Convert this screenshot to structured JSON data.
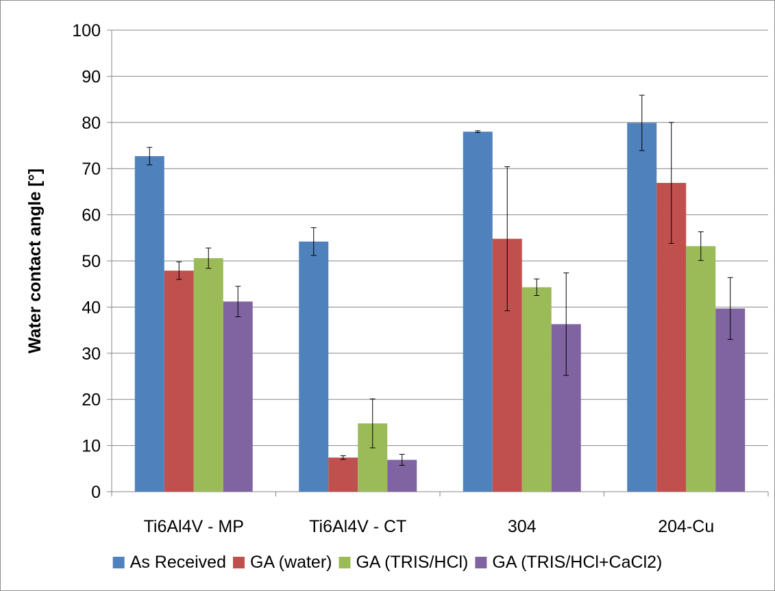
{
  "chart_data": {
    "type": "bar",
    "title": "",
    "xlabel": "",
    "ylabel": "Water contact angle [°]",
    "ylim": [
      0,
      100
    ],
    "yticks": [
      0,
      10,
      20,
      30,
      40,
      50,
      60,
      70,
      80,
      90,
      100
    ],
    "grid": true,
    "legend_position": "bottom",
    "categories": [
      "Ti6Al4V - MP",
      "Ti6Al4V - CT",
      "304",
      "204-Cu"
    ],
    "series": [
      {
        "name": "As Received",
        "color": "#4F81BD",
        "values": [
          72.7,
          54.2,
          78.0,
          79.9
        ],
        "errors": [
          1.9,
          3.0,
          0.2,
          6.0
        ]
      },
      {
        "name": "GA (water)",
        "color": "#C0504D",
        "values": [
          47.9,
          7.4,
          54.8,
          66.9
        ],
        "errors": [
          1.9,
          0.4,
          15.6,
          13.1
        ]
      },
      {
        "name": "GA (TRIS/HCl)",
        "color": "#9BBB59",
        "values": [
          50.6,
          14.8,
          44.3,
          53.2
        ],
        "errors": [
          2.2,
          5.3,
          1.8,
          3.1
        ]
      },
      {
        "name": "GA (TRIS/HCl+CaCl2)",
        "color": "#8064A2",
        "values": [
          41.2,
          6.9,
          36.3,
          39.7
        ],
        "errors": [
          3.3,
          1.2,
          11.1,
          6.7
        ]
      }
    ]
  }
}
